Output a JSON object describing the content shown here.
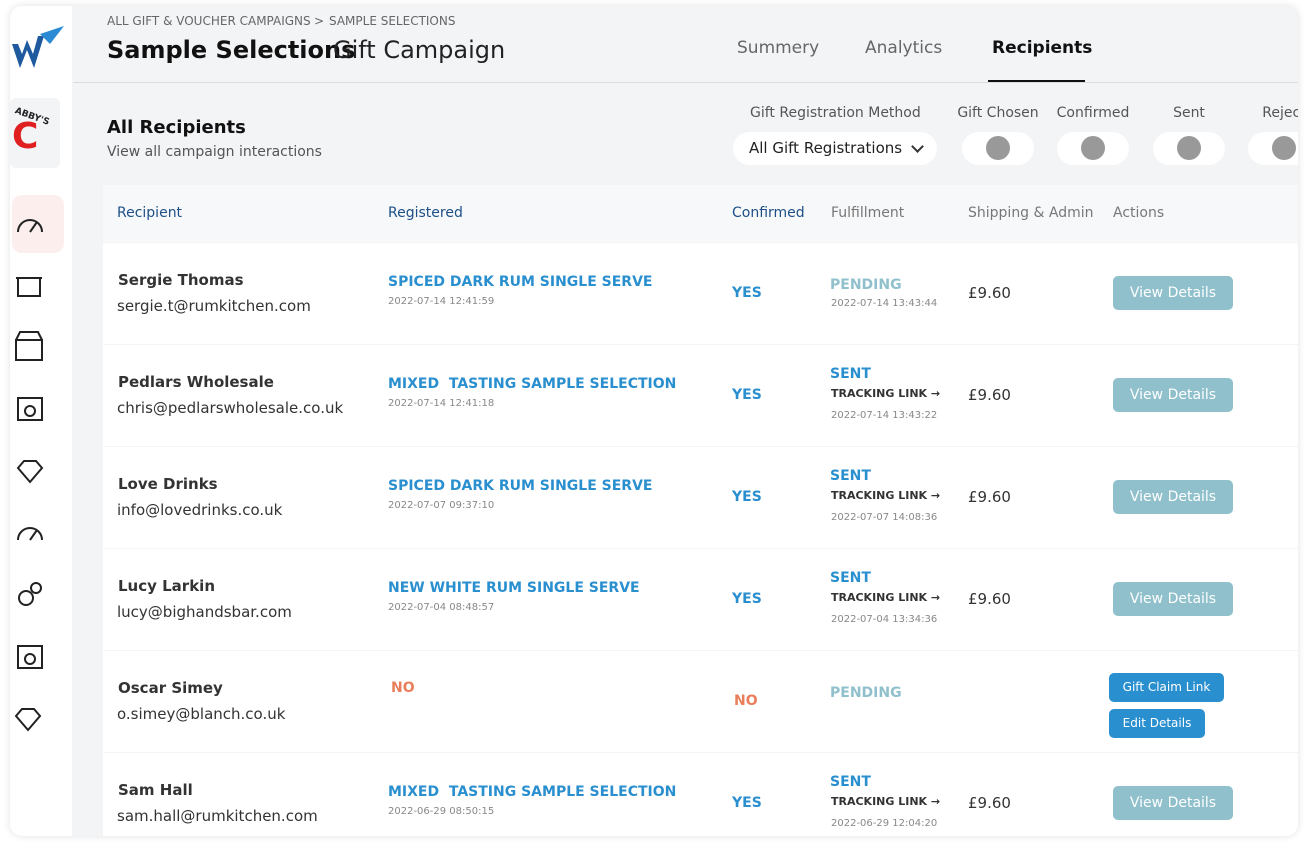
{
  "breadcrumb": {
    "parent": "ALL GIFT & VOUCHER CAMPAIGNS",
    "separator": ">",
    "current": "SAMPLE SELECTIONS"
  },
  "header": {
    "title_bold": "Sample Selections",
    "title_rest": "Gift Campaign"
  },
  "client_logo": {
    "text": "ABBY'S",
    "letter": "C"
  },
  "tabs": [
    "Summery",
    "Analytics",
    "Recipients"
  ],
  "section": {
    "title": "All Recipients",
    "subtitle": "View all campaign interactions"
  },
  "filters": {
    "method_label": "Gift Registration Method",
    "method_value": "All Gift Registrations",
    "toggles": [
      "Gift Chosen",
      "Confirmed",
      "Sent",
      "Reject"
    ]
  },
  "table": {
    "columns": [
      "Recipient",
      "Registered",
      "Confirmed",
      "Fulfillment",
      "Shipping & Admin",
      "Actions"
    ],
    "rows": [
      {
        "name": "Sergie Thomas",
        "email": "sergie.t@rumkitchen.com",
        "registered": "SPICED DARK RUM SINGLE SERVE",
        "registered_date": "2022-07-14 12:41:59",
        "confirmed": "YES",
        "status": "PENDING",
        "status_date": "2022-07-14 13:43:44",
        "shipping": "£9.60",
        "actions": [
          "View Details"
        ]
      },
      {
        "name": "Pedlars Wholesale",
        "email": "chris@pedlarswholesale.co.uk",
        "registered": "MIXED  TASTING SAMPLE SELECTION",
        "registered_date": "2022-07-14 12:41:18",
        "confirmed": "YES",
        "status": "SENT",
        "tracking": "TRACKING LINK →",
        "status_date": "2022-07-14 13:43:22",
        "shipping": "£9.60",
        "actions": [
          "View Details"
        ]
      },
      {
        "name": "Love Drinks",
        "email": "info@lovedrinks.co.uk",
        "registered": "SPICED DARK RUM SINGLE SERVE",
        "registered_date": "2022-07-07 09:37:10",
        "confirmed": "YES",
        "status": "SENT",
        "tracking": "TRACKING LINK →",
        "status_date": "2022-07-07 14:08:36",
        "shipping": "£9.60",
        "actions": [
          "View Details"
        ]
      },
      {
        "name": "Lucy Larkin",
        "email": "lucy@bighandsbar.com",
        "registered": "NEW WHITE RUM SINGLE SERVE",
        "registered_date": "2022-07-04 08:48:57",
        "confirmed": "YES",
        "status": "SENT",
        "tracking": "TRACKING LINK →",
        "status_date": "2022-07-04 13:34:36",
        "shipping": "£9.60",
        "actions": [
          "View Details"
        ]
      },
      {
        "name": "Oscar Simey",
        "email": "o.simey@blanch.co.uk",
        "registered": "NO",
        "confirmed": "NO",
        "status": "PENDING",
        "actions": [
          "Gift Claim Link",
          "Edit Details"
        ]
      },
      {
        "name": "Sam Hall",
        "email": "sam.hall@rumkitchen.com",
        "registered": "MIXED  TASTING SAMPLE SELECTION",
        "registered_date": "2022-06-29 08:50:15",
        "confirmed": "YES",
        "status": "SENT",
        "tracking": "TRACKING LINK →",
        "status_date": "2022-06-29 12:04:20",
        "shipping": "£9.60",
        "actions": [
          "View Details"
        ]
      }
    ]
  }
}
